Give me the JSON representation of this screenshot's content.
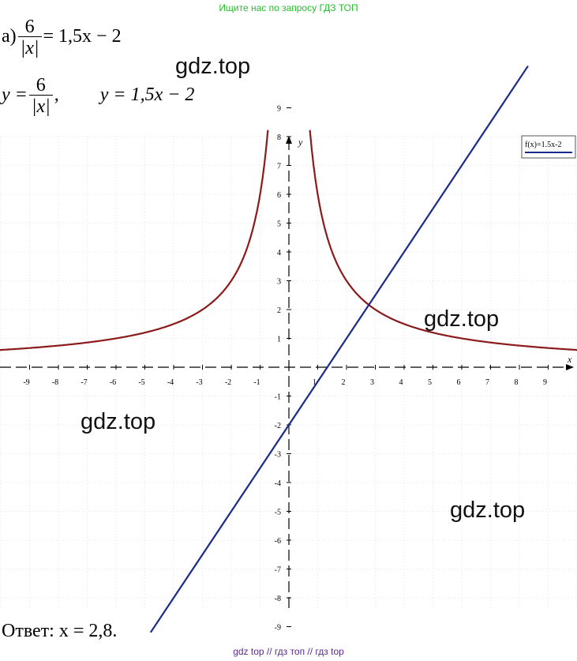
{
  "header": {
    "banner": "Ищите нас по запросу ГДЗ ТОП"
  },
  "footer": {
    "banner": "gdz top // гдз топ // гдз top"
  },
  "watermarks": [
    "gdz.top",
    "gdz.top",
    "gdz.top",
    "gdz.top"
  ],
  "problem": {
    "label": "а)",
    "numerator": "6",
    "denominator": "|x|",
    "rhs": "= 1,5x − 2",
    "line2_y_eq": "y =",
    "line2_comma": ",",
    "line2_second": "y = 1,5x − 2"
  },
  "answer": {
    "text": "Ответ: x = 2,8."
  },
  "chart_data": {
    "type": "line",
    "x_axis_name": "x",
    "y_axis_name": "y",
    "xlim": [
      -9.9,
      9.9
    ],
    "ylim": [
      -9.9,
      9.9
    ],
    "grid": true,
    "x_ticks": [
      -9,
      -8,
      -7,
      -6,
      -5,
      -4,
      -3,
      -2,
      -1,
      1,
      2,
      3,
      4,
      5,
      6,
      7,
      8,
      9
    ],
    "y_ticks": [
      -9,
      -8,
      -7,
      -6,
      -5,
      -4,
      -3,
      -2,
      -1,
      1,
      2,
      3,
      4,
      5,
      6,
      7,
      8,
      9
    ],
    "legend": {
      "placement": "top-right",
      "entry": "f(x)=1.5x-2"
    },
    "series": [
      {
        "name": "",
        "formula": "6/|x|",
        "color": "#8b1a1a"
      },
      {
        "name": "f(x)=1.5x-2",
        "formula": "1.5x-2",
        "color": "#1a2a8a"
      }
    ],
    "intersection_x": 2.8
  }
}
